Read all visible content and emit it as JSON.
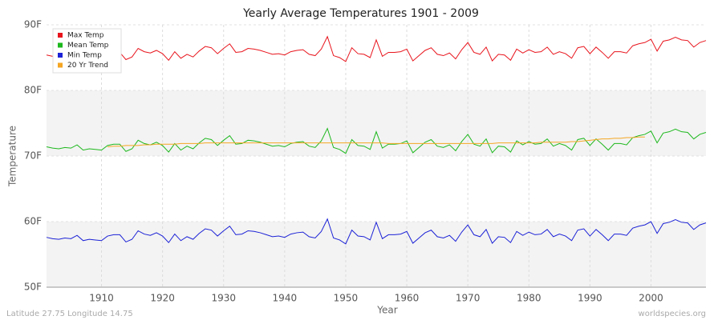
{
  "chart_data": {
    "type": "line",
    "title": "Yearly Average Temperatures 1901 - 2009",
    "xlabel": "Year",
    "ylabel": "Temperature",
    "footer_left": "Latitude 27.75 Longitude 14.75",
    "footer_right": "worldspecies.org",
    "legend": "top-left",
    "grid": true,
    "x": [
      1901,
      1902,
      1903,
      1904,
      1905,
      1906,
      1907,
      1908,
      1909,
      1910,
      1911,
      1912,
      1913,
      1914,
      1915,
      1916,
      1917,
      1918,
      1919,
      1920,
      1921,
      1922,
      1923,
      1924,
      1925,
      1926,
      1927,
      1928,
      1929,
      1930,
      1931,
      1932,
      1933,
      1934,
      1935,
      1936,
      1937,
      1938,
      1939,
      1940,
      1941,
      1942,
      1943,
      1944,
      1945,
      1946,
      1947,
      1948,
      1949,
      1950,
      1951,
      1952,
      1953,
      1954,
      1955,
      1956,
      1957,
      1958,
      1959,
      1960,
      1961,
      1962,
      1963,
      1964,
      1965,
      1966,
      1967,
      1968,
      1969,
      1970,
      1971,
      1972,
      1973,
      1974,
      1975,
      1976,
      1977,
      1978,
      1979,
      1980,
      1981,
      1982,
      1983,
      1984,
      1985,
      1986,
      1987,
      1988,
      1989,
      1990,
      1991,
      1992,
      1993,
      1994,
      1995,
      1996,
      1997,
      1998,
      1999,
      2000,
      2001,
      2002,
      2003,
      2004,
      2005,
      2006,
      2007,
      2008,
      2009
    ],
    "xlim": [
      1901,
      2009
    ],
    "xticks": [
      1910,
      1920,
      1930,
      1940,
      1950,
      1960,
      1970,
      1980,
      1990,
      2000
    ],
    "ylim": [
      50,
      90
    ],
    "yticks": [
      {
        "value": 50,
        "label": "50F"
      },
      {
        "value": 60,
        "label": "60F"
      },
      {
        "value": 70,
        "label": "70F"
      },
      {
        "value": 80,
        "label": "80F"
      },
      {
        "value": 90,
        "label": "90F"
      }
    ],
    "series": [
      {
        "name": "Max Temp",
        "color": "#e8141c",
        "values": [
          85.4,
          85.2,
          85.1,
          85.3,
          85.2,
          85.7,
          84.9,
          85.1,
          85.0,
          84.9,
          85.6,
          85.8,
          85.8,
          84.7,
          85.1,
          86.4,
          85.9,
          85.7,
          86.1,
          85.6,
          84.6,
          85.9,
          84.9,
          85.5,
          85.1,
          86.0,
          86.7,
          86.5,
          85.6,
          86.4,
          87.1,
          85.8,
          85.9,
          86.4,
          86.3,
          86.1,
          85.8,
          85.5,
          85.6,
          85.4,
          85.9,
          86.1,
          86.2,
          85.5,
          85.3,
          86.3,
          88.2,
          85.3,
          85.0,
          84.4,
          86.5,
          85.6,
          85.5,
          85.0,
          87.7,
          85.2,
          85.8,
          85.8,
          85.9,
          86.3,
          84.5,
          85.3,
          86.1,
          86.5,
          85.5,
          85.3,
          85.7,
          84.8,
          86.2,
          87.3,
          85.8,
          85.5,
          86.6,
          84.5,
          85.5,
          85.4,
          84.6,
          86.3,
          85.7,
          86.2,
          85.8,
          85.9,
          86.6,
          85.5,
          85.9,
          85.6,
          84.9,
          86.5,
          86.7,
          85.6,
          86.6,
          85.8,
          84.9,
          85.9,
          85.9,
          85.7,
          86.8,
          87.1,
          87.3,
          87.8,
          86.0,
          87.5,
          87.7,
          88.1,
          87.7,
          87.6,
          86.6,
          87.3,
          87.6
        ]
      },
      {
        "name": "Mean Temp",
        "color": "#1db81d",
        "values": [
          71.4,
          71.2,
          71.1,
          71.3,
          71.2,
          71.7,
          70.9,
          71.1,
          71.0,
          70.9,
          71.6,
          71.8,
          71.8,
          70.7,
          71.1,
          72.4,
          71.9,
          71.7,
          72.1,
          71.6,
          70.6,
          71.9,
          70.9,
          71.5,
          71.1,
          72.0,
          72.7,
          72.5,
          71.6,
          72.4,
          73.1,
          71.8,
          71.9,
          72.4,
          72.3,
          72.1,
          71.8,
          71.5,
          71.6,
          71.4,
          71.9,
          72.1,
          72.2,
          71.5,
          71.3,
          72.3,
          74.2,
          71.3,
          71.0,
          70.4,
          72.5,
          71.6,
          71.5,
          71.0,
          73.7,
          71.2,
          71.8,
          71.8,
          71.9,
          72.3,
          70.5,
          71.3,
          72.1,
          72.5,
          71.5,
          71.3,
          71.7,
          70.8,
          72.2,
          73.3,
          71.8,
          71.5,
          72.6,
          70.5,
          71.5,
          71.4,
          70.6,
          72.3,
          71.7,
          72.2,
          71.8,
          71.9,
          72.6,
          71.5,
          71.9,
          71.6,
          70.9,
          72.5,
          72.7,
          71.6,
          72.6,
          71.8,
          70.9,
          71.9,
          71.9,
          71.7,
          72.8,
          73.1,
          73.3,
          73.8,
          72.0,
          73.5,
          73.7,
          74.1,
          73.7,
          73.6,
          72.6,
          73.3,
          73.6
        ]
      },
      {
        "name": "Min Temp",
        "color": "#1c22d6",
        "values": [
          57.6,
          57.4,
          57.3,
          57.5,
          57.4,
          57.9,
          57.1,
          57.3,
          57.2,
          57.1,
          57.8,
          58.0,
          58.0,
          56.9,
          57.3,
          58.6,
          58.1,
          57.9,
          58.3,
          57.8,
          56.8,
          58.1,
          57.1,
          57.7,
          57.3,
          58.2,
          58.9,
          58.7,
          57.8,
          58.6,
          59.3,
          58.0,
          58.1,
          58.6,
          58.5,
          58.3,
          58.0,
          57.7,
          57.8,
          57.6,
          58.1,
          58.3,
          58.4,
          57.7,
          57.5,
          58.5,
          60.4,
          57.5,
          57.2,
          56.6,
          58.7,
          57.8,
          57.7,
          57.2,
          59.9,
          57.4,
          58.0,
          58.0,
          58.1,
          58.5,
          56.7,
          57.5,
          58.3,
          58.7,
          57.7,
          57.5,
          57.9,
          57.0,
          58.4,
          59.5,
          58.0,
          57.7,
          58.8,
          56.7,
          57.7,
          57.6,
          56.8,
          58.5,
          57.9,
          58.4,
          58.0,
          58.1,
          58.8,
          57.7,
          58.1,
          57.8,
          57.1,
          58.7,
          58.9,
          57.8,
          58.8,
          58.0,
          57.1,
          58.1,
          58.1,
          57.9,
          59.0,
          59.3,
          59.5,
          60.0,
          58.2,
          59.7,
          59.9,
          60.3,
          59.9,
          59.8,
          58.8,
          59.5,
          59.8
        ]
      },
      {
        "name": "20 Yr Trend",
        "color": "#f5a623",
        "values": [
          null,
          null,
          null,
          null,
          null,
          null,
          null,
          null,
          null,
          null,
          71.4,
          71.5,
          71.5,
          71.6,
          71.6,
          71.6,
          71.7,
          71.7,
          71.8,
          71.8,
          71.8,
          71.8,
          71.9,
          71.9,
          71.9,
          71.9,
          72.0,
          72.0,
          72.0,
          72.0,
          72.0,
          72.0,
          72.0,
          72.0,
          72.0,
          72.0,
          72.0,
          72.0,
          72.0,
          72.0,
          72.0,
          72.0,
          72.0,
          72.0,
          72.0,
          72.0,
          72.0,
          72.0,
          72.0,
          72.0,
          72.0,
          72.0,
          72.0,
          72.0,
          72.0,
          72.0,
          71.9,
          71.9,
          71.9,
          71.9,
          71.9,
          71.9,
          71.9,
          71.9,
          71.9,
          71.9,
          71.9,
          71.9,
          71.9,
          71.9,
          71.9,
          71.9,
          71.9,
          71.9,
          72.0,
          72.0,
          72.0,
          72.0,
          72.0,
          72.0,
          72.0,
          72.1,
          72.1,
          72.1,
          72.1,
          72.1,
          72.2,
          72.2,
          72.3,
          72.4,
          72.5,
          72.6,
          72.6,
          72.7,
          72.7,
          72.8,
          72.8,
          72.9,
          72.9,
          null,
          null,
          null,
          null,
          null,
          null,
          null,
          null,
          null,
          null
        ]
      }
    ]
  }
}
